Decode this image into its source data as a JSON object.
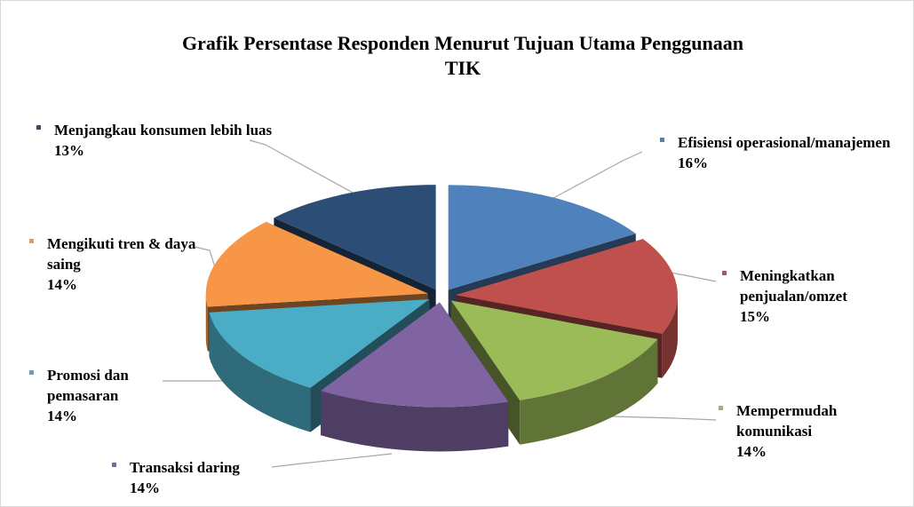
{
  "chart_data": {
    "type": "pie",
    "title": "Grafik Persentase Responden Menurut Tujuan Utama Penggunaan TIK",
    "categories": [
      "Efisiensi operasional/manajemen",
      "Meningkatkan penjualan/omzet",
      "Mempermudah komunikasi",
      "Transaksi daring",
      "Promosi dan pemasaran",
      "Mengikuti tren & daya saing",
      "Menjangkau konsumen lebih luas"
    ],
    "values": [
      16,
      15,
      14,
      14,
      14,
      14,
      13
    ],
    "value_labels": [
      "16%",
      "15%",
      "14%",
      "14%",
      "14%",
      "14%",
      "13%"
    ],
    "colors": [
      "#4f81bd",
      "#c0504d",
      "#9bbb59",
      "#8064a2",
      "#4bacc6",
      "#f79646",
      "#2c4d75"
    ]
  }
}
